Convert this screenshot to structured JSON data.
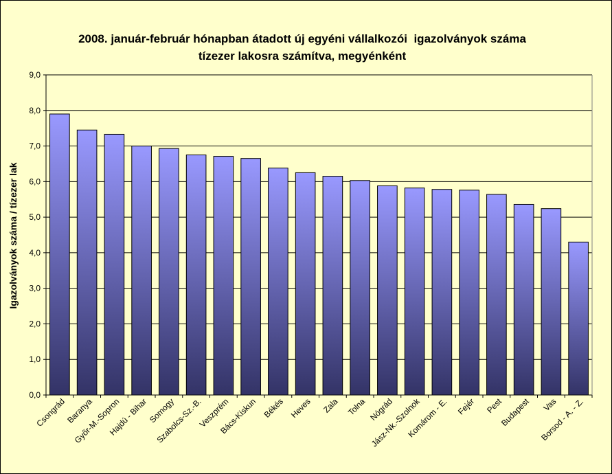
{
  "chart_data": {
    "type": "bar",
    "title": [
      "2008. január-február hónapban átadott új egyéni vállalkozói  igazolványok száma",
      "tízezer lakosra számítva, megyénként"
    ],
    "xlabel": "",
    "ylabel": "Igazolványok száma / tízezer lak",
    "ylim": [
      0,
      9
    ],
    "yticks": [
      "0,0",
      "1,0",
      "2,0",
      "3,0",
      "4,0",
      "5,0",
      "6,0",
      "7,0",
      "8,0",
      "9,0"
    ],
    "grid": true,
    "categories": [
      "Csongrád",
      "Baranya",
      "Győr-M.-Sopron",
      "Hajdú - Bihar",
      "Somogy",
      "Szabolcs-Sz.-B.",
      "Veszprém",
      "Bács-Kiskun",
      "Békés",
      "Heves",
      "Zala",
      "Tolna",
      "Nógrád",
      "Jász-Nk.-Szolnok",
      "Komárom - E.",
      "Fejér",
      "Pest",
      "Budapest",
      "Vas",
      "Borsod - A. - Z."
    ],
    "values": [
      7.9,
      7.45,
      7.33,
      7.0,
      6.93,
      6.75,
      6.71,
      6.65,
      6.38,
      6.25,
      6.15,
      6.03,
      5.88,
      5.82,
      5.78,
      5.76,
      5.64,
      5.36,
      5.24,
      4.3
    ],
    "colors": {
      "bar_top": "#9999ff",
      "bar_bottom": "#333366",
      "plot_bg": "#ffffcc",
      "page_bg": "#ffffcc",
      "grid": "#000000"
    }
  }
}
